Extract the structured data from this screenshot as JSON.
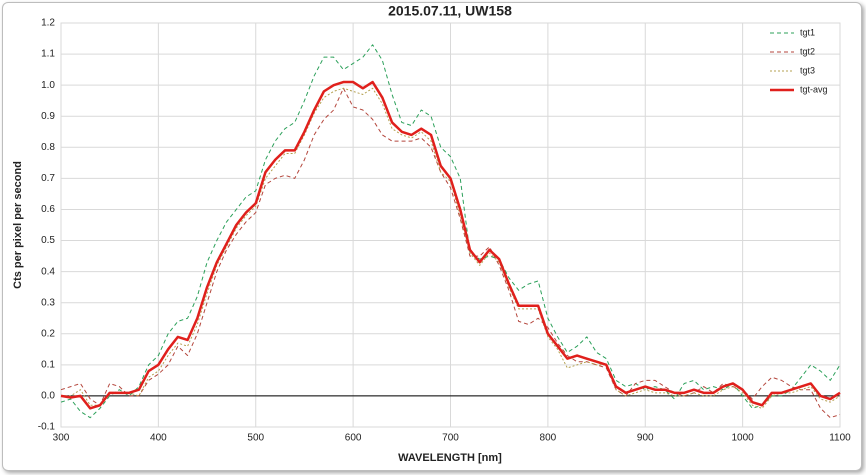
{
  "chart_data": {
    "type": "line",
    "title": "2015.07.11, UW158",
    "x_label": "WAVELENGTH [nm]",
    "y_label": "Cts per pixel per second",
    "x": [
      300,
      310,
      320,
      330,
      340,
      350,
      360,
      370,
      380,
      390,
      400,
      410,
      420,
      430,
      440,
      450,
      460,
      470,
      480,
      490,
      500,
      510,
      520,
      530,
      540,
      550,
      560,
      570,
      580,
      590,
      600,
      610,
      620,
      630,
      640,
      650,
      660,
      670,
      680,
      690,
      700,
      710,
      720,
      730,
      740,
      750,
      760,
      770,
      780,
      790,
      800,
      810,
      820,
      830,
      840,
      850,
      860,
      870,
      880,
      890,
      900,
      910,
      920,
      930,
      940,
      950,
      960,
      970,
      980,
      990,
      1000,
      1010,
      1020,
      1030,
      1040,
      1050,
      1060,
      1070,
      1080,
      1090,
      1100
    ],
    "series": [
      {
        "name": "tgt1",
        "color": "#2ca05a",
        "line_style": "dashed",
        "values": [
          -0.02,
          -0.01,
          -0.05,
          -0.07,
          -0.04,
          0.0,
          0.02,
          0.0,
          0.03,
          0.1,
          0.13,
          0.2,
          0.24,
          0.25,
          0.32,
          0.43,
          0.5,
          0.56,
          0.6,
          0.64,
          0.66,
          0.76,
          0.82,
          0.86,
          0.88,
          0.95,
          1.03,
          1.09,
          1.09,
          1.05,
          1.07,
          1.09,
          1.13,
          1.08,
          0.97,
          0.88,
          0.87,
          0.92,
          0.9,
          0.8,
          0.77,
          0.7,
          0.46,
          0.44,
          0.45,
          0.44,
          0.38,
          0.34,
          0.36,
          0.37,
          0.25,
          0.19,
          0.14,
          0.16,
          0.19,
          0.14,
          0.12,
          0.05,
          0.03,
          0.04,
          0.02,
          0.03,
          0.02,
          -0.01,
          0.04,
          0.05,
          0.02,
          0.03,
          0.02,
          0.04,
          0.0,
          -0.04,
          -0.03,
          0.0,
          0.0,
          0.02,
          0.06,
          0.1,
          0.08,
          0.05,
          0.1
        ]
      },
      {
        "name": "tgt2",
        "color": "#b4463c",
        "line_style": "dashed",
        "values": [
          0.02,
          0.03,
          0.04,
          -0.01,
          -0.03,
          0.04,
          0.03,
          0.0,
          0.0,
          0.05,
          0.07,
          0.1,
          0.16,
          0.13,
          0.2,
          0.3,
          0.4,
          0.47,
          0.52,
          0.56,
          0.59,
          0.68,
          0.7,
          0.71,
          0.7,
          0.76,
          0.84,
          0.89,
          0.92,
          0.99,
          0.93,
          0.92,
          0.89,
          0.84,
          0.82,
          0.82,
          0.82,
          0.83,
          0.8,
          0.72,
          0.67,
          0.57,
          0.45,
          0.45,
          0.48,
          0.42,
          0.34,
          0.24,
          0.23,
          0.25,
          0.22,
          0.17,
          0.13,
          0.11,
          0.11,
          0.1,
          0.09,
          0.02,
          0.0,
          0.04,
          0.05,
          0.05,
          0.03,
          0.01,
          0.0,
          0.01,
          0.03,
          0.01,
          0.04,
          0.03,
          0.02,
          -0.01,
          0.03,
          0.06,
          0.05,
          0.03,
          0.02,
          0.02,
          -0.04,
          -0.07,
          -0.06
        ]
      },
      {
        "name": "tgt3",
        "color": "#b4a050",
        "line_style": "dotted",
        "values": [
          0.0,
          0.0,
          0.02,
          -0.03,
          -0.03,
          0.01,
          0.01,
          0.01,
          0.0,
          0.06,
          0.08,
          0.13,
          0.17,
          0.16,
          0.23,
          0.33,
          0.42,
          0.48,
          0.54,
          0.58,
          0.61,
          0.7,
          0.74,
          0.78,
          0.78,
          0.84,
          0.91,
          0.96,
          0.98,
          0.99,
          0.98,
          0.97,
          0.99,
          0.94,
          0.86,
          0.84,
          0.83,
          0.85,
          0.82,
          0.72,
          0.69,
          0.58,
          0.46,
          0.42,
          0.46,
          0.43,
          0.35,
          0.28,
          0.28,
          0.28,
          0.19,
          0.15,
          0.09,
          0.1,
          0.11,
          0.1,
          0.1,
          0.02,
          0.0,
          0.01,
          0.02,
          0.01,
          0.01,
          0.0,
          0.0,
          0.01,
          0.0,
          0.0,
          0.02,
          0.03,
          0.01,
          -0.03,
          -0.04,
          0.0,
          0.01,
          0.01,
          0.02,
          0.03,
          -0.01,
          -0.02,
          0.0
        ]
      },
      {
        "name": "tgt-avg",
        "color": "#e0201c",
        "line_style": "solid",
        "values": [
          0.0,
          -0.005,
          0.0,
          -0.04,
          -0.03,
          0.01,
          0.01,
          0.01,
          0.02,
          0.08,
          0.1,
          0.15,
          0.19,
          0.18,
          0.25,
          0.35,
          0.43,
          0.49,
          0.55,
          0.59,
          0.62,
          0.72,
          0.76,
          0.79,
          0.79,
          0.85,
          0.92,
          0.98,
          1.0,
          1.01,
          1.01,
          0.99,
          1.01,
          0.96,
          0.88,
          0.85,
          0.84,
          0.86,
          0.84,
          0.74,
          0.7,
          0.6,
          0.47,
          0.43,
          0.47,
          0.44,
          0.36,
          0.29,
          0.29,
          0.29,
          0.2,
          0.16,
          0.12,
          0.13,
          0.12,
          0.11,
          0.1,
          0.03,
          0.01,
          0.02,
          0.03,
          0.02,
          0.02,
          0.01,
          0.01,
          0.02,
          0.01,
          0.01,
          0.03,
          0.04,
          0.02,
          -0.02,
          -0.03,
          0.01,
          0.01,
          0.02,
          0.03,
          0.04,
          0.0,
          -0.01,
          0.01
        ]
      }
    ],
    "xlim": [
      300,
      1100
    ],
    "xticks": [
      300,
      400,
      500,
      600,
      700,
      800,
      900,
      1000,
      1100
    ],
    "ylim": [
      -0.1,
      1.2
    ],
    "yticks": [
      -0.1,
      {
        "value": 0,
        "label": "0.0"
      },
      0.1,
      0.2,
      0.3,
      0.4,
      0.5,
      0.6,
      0.7,
      0.8,
      0.9,
      {
        "value": 1,
        "label": "1.0"
      },
      1.1,
      1.2
    ],
    "grid": true,
    "legend": "top-right"
  }
}
